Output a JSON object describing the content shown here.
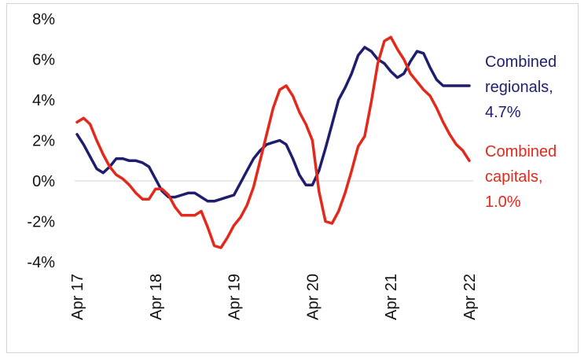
{
  "chart_data": {
    "type": "line",
    "title": "",
    "xlabel": "",
    "ylabel": "",
    "ylim": [
      -4,
      8
    ],
    "y_ticks": [
      8,
      6,
      4,
      2,
      0,
      -2,
      -4
    ],
    "y_tick_labels": [
      "8%",
      "6%",
      "4%",
      "2%",
      "0%",
      "-2%",
      "-4%"
    ],
    "x_range": [
      "2017-04",
      "2022-04"
    ],
    "x_ticks": [
      "2017-04",
      "2018-04",
      "2019-04",
      "2020-04",
      "2021-04",
      "2022-04"
    ],
    "x_tick_labels": [
      "Apr 17",
      "Apr 18",
      "Apr 19",
      "Apr 20",
      "Apr 21",
      "Apr 22"
    ],
    "grid": false,
    "zero_line": true,
    "x": [
      "2017-04",
      "2017-05",
      "2017-06",
      "2017-07",
      "2017-08",
      "2017-09",
      "2017-10",
      "2017-11",
      "2017-12",
      "2018-01",
      "2018-02",
      "2018-03",
      "2018-04",
      "2018-05",
      "2018-06",
      "2018-07",
      "2018-08",
      "2018-09",
      "2018-10",
      "2018-11",
      "2018-12",
      "2019-01",
      "2019-02",
      "2019-03",
      "2019-04",
      "2019-05",
      "2019-06",
      "2019-07",
      "2019-08",
      "2019-09",
      "2019-10",
      "2019-11",
      "2019-12",
      "2020-01",
      "2020-02",
      "2020-03",
      "2020-04",
      "2020-05",
      "2020-06",
      "2020-07",
      "2020-08",
      "2020-09",
      "2020-10",
      "2020-11",
      "2020-12",
      "2021-01",
      "2021-02",
      "2021-03",
      "2021-04",
      "2021-05",
      "2021-06",
      "2021-07",
      "2021-08",
      "2021-09",
      "2021-10",
      "2021-11",
      "2021-12",
      "2022-01",
      "2022-02",
      "2022-03",
      "2022-04"
    ],
    "series": [
      {
        "name": "Combined regionals",
        "color": "#1f1e6e",
        "values": [
          2.3,
          1.8,
          1.2,
          0.6,
          0.4,
          0.7,
          1.1,
          1.1,
          1.0,
          1.0,
          0.9,
          0.7,
          0.1,
          -0.5,
          -0.8,
          -0.8,
          -0.7,
          -0.6,
          -0.6,
          -0.8,
          -1.0,
          -1.0,
          -0.9,
          -0.8,
          -0.7,
          -0.1,
          0.5,
          1.1,
          1.5,
          1.8,
          1.9,
          2.0,
          1.8,
          1.1,
          0.3,
          -0.2,
          -0.2,
          0.5,
          1.6,
          2.8,
          4.0,
          4.6,
          5.3,
          6.2,
          6.6,
          6.4,
          6.0,
          5.8,
          5.4,
          5.1,
          5.3,
          5.9,
          6.4,
          6.3,
          5.6,
          5.0,
          4.7,
          4.7,
          4.7,
          4.7,
          4.7
        ],
        "label_lines": [
          "Combined",
          "regionals,",
          "4.7%"
        ]
      },
      {
        "name": "Combined capitals",
        "color": "#e3281c",
        "values": [
          2.9,
          3.1,
          2.8,
          2.0,
          1.3,
          0.7,
          0.3,
          0.1,
          -0.2,
          -0.6,
          -0.9,
          -0.9,
          -0.4,
          -0.4,
          -0.7,
          -1.3,
          -1.7,
          -1.7,
          -1.7,
          -1.5,
          -2.3,
          -3.2,
          -3.3,
          -2.8,
          -2.2,
          -1.8,
          -1.2,
          -0.3,
          1.0,
          2.3,
          3.6,
          4.5,
          4.7,
          4.2,
          3.4,
          2.8,
          2.0,
          -0.5,
          -2.0,
          -2.1,
          -1.5,
          -0.6,
          0.5,
          1.7,
          2.2,
          3.9,
          5.8,
          6.9,
          7.1,
          6.5,
          6.0,
          5.3,
          4.9,
          4.5,
          4.2,
          3.6,
          2.9,
          2.3,
          1.8,
          1.5,
          1.0
        ],
        "label_lines": [
          "Combined",
          "capitals,",
          "1.0%"
        ]
      }
    ]
  }
}
